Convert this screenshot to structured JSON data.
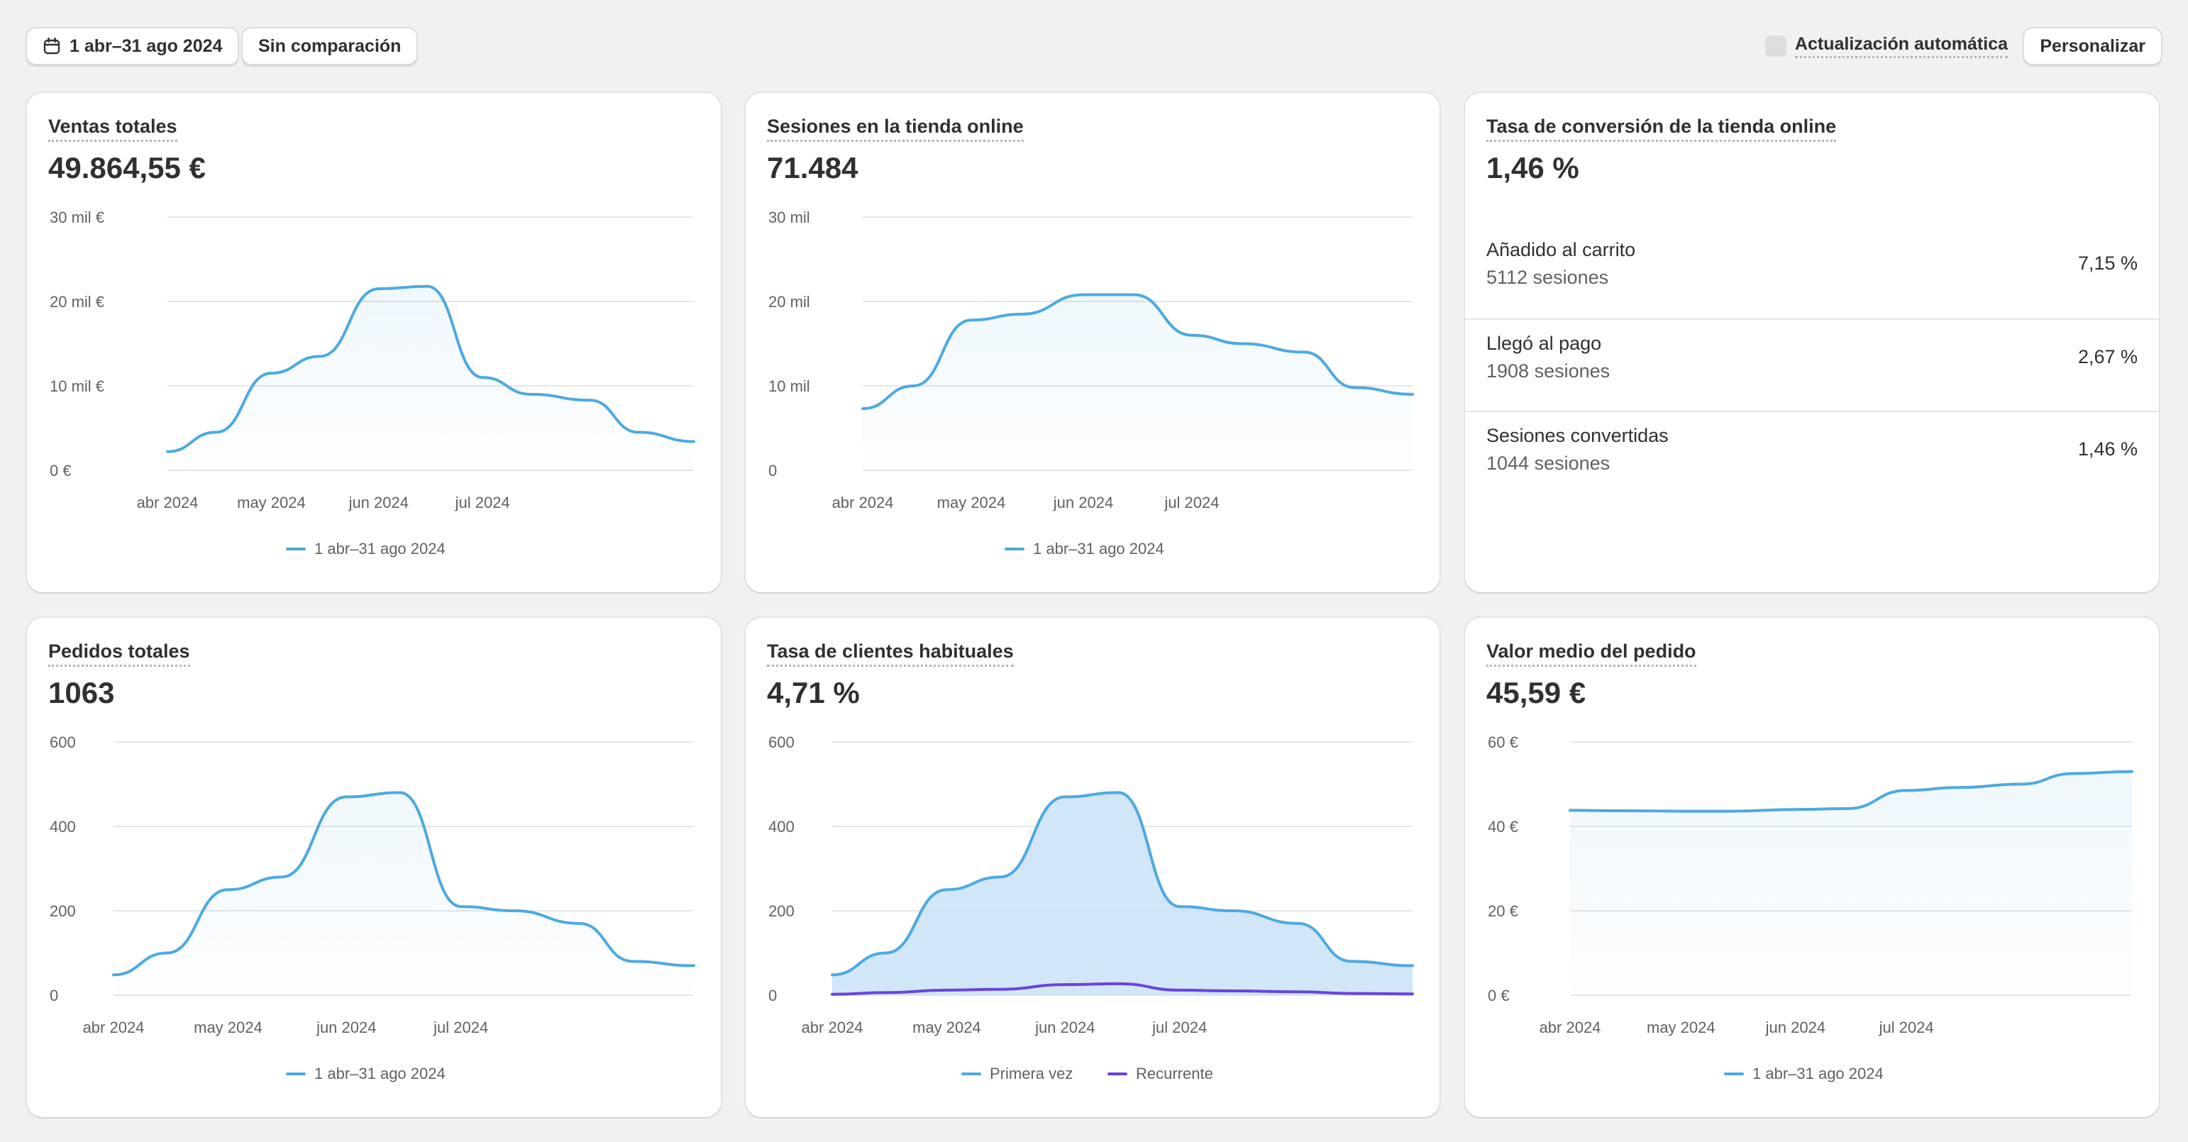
{
  "toolbar": {
    "date_range": "1 abr–31 ago 2024",
    "compare": "Sin comparación",
    "auto_refresh": "Actualización automática",
    "customize": "Personalizar"
  },
  "colors": {
    "primary": "#4ea9e0",
    "secondary": "#6a43dc",
    "area_fill": "#c9e2f4",
    "grid": "#e6e6e6",
    "page_bg": "#f1f1f1"
  },
  "cards": {
    "sales": {
      "title": "Ventas totales",
      "value": "49.864,55 €",
      "chart_data": {
        "type": "line",
        "x": [
          "2024-04-01",
          "2024-04-15",
          "2024-05-01",
          "2024-05-15",
          "2024-06-01",
          "2024-06-15",
          "2024-07-01",
          "2024-07-15",
          "2024-08-01",
          "2024-08-15",
          "2024-08-31"
        ],
        "series": [
          {
            "name": "1 abr–31 ago 2024",
            "values": [
              2200,
              4500,
              11500,
              13500,
              21500,
              21800,
              11000,
              9000,
              8300,
              4500,
              3400
            ]
          }
        ],
        "y_ticks": [
          "0 €",
          "10 mil €",
          "20 mil €",
          "30 mil €"
        ],
        "ylim": [
          0,
          30000
        ],
        "x_ticks": [
          "abr 2024",
          "may 2024",
          "jun 2024",
          "jul 2024"
        ],
        "legend": "bottom"
      }
    },
    "sessions": {
      "title": "Sesiones en la tienda online",
      "value": "71.484",
      "chart_data": {
        "type": "line",
        "x": [
          "2024-04-01",
          "2024-04-15",
          "2024-05-01",
          "2024-05-15",
          "2024-06-01",
          "2024-06-15",
          "2024-07-01",
          "2024-07-15",
          "2024-08-01",
          "2024-08-15",
          "2024-08-31"
        ],
        "series": [
          {
            "name": "1 abr–31 ago 2024",
            "values": [
              7300,
              10000,
              17800,
              18500,
              20800,
              20800,
              16000,
              15000,
              14000,
              9800,
              9000
            ]
          }
        ],
        "y_ticks": [
          "0",
          "10 mil",
          "20 mil",
          "30 mil"
        ],
        "ylim": [
          0,
          30000
        ],
        "x_ticks": [
          "abr 2024",
          "may 2024",
          "jun 2024",
          "jul 2024"
        ],
        "legend": "bottom"
      }
    },
    "conversion": {
      "title": "Tasa de conversión de la tienda online",
      "value": "1,46 %",
      "steps": [
        {
          "label": "Añadido al carrito",
          "sessions": "5112 sesiones",
          "rate": "7,15 %"
        },
        {
          "label": "Llegó al pago",
          "sessions": "1908 sesiones",
          "rate": "2,67 %"
        },
        {
          "label": "Sesiones convertidas",
          "sessions": "1044 sesiones",
          "rate": "1,46 %"
        }
      ]
    },
    "orders": {
      "title": "Pedidos totales",
      "value": "1063",
      "chart_data": {
        "type": "line",
        "x": [
          "2024-04-01",
          "2024-04-15",
          "2024-05-01",
          "2024-05-15",
          "2024-06-01",
          "2024-06-15",
          "2024-07-01",
          "2024-07-15",
          "2024-08-01",
          "2024-08-15",
          "2024-08-31"
        ],
        "series": [
          {
            "name": "1 abr–31 ago 2024",
            "values": [
              48,
              100,
              250,
              280,
              470,
              480,
              210,
              200,
              170,
              80,
              70
            ]
          }
        ],
        "y_ticks": [
          "0",
          "200",
          "400",
          "600"
        ],
        "ylim": [
          0,
          600
        ],
        "x_ticks": [
          "abr 2024",
          "may 2024",
          "jun 2024",
          "jul 2024"
        ],
        "legend": "bottom"
      }
    },
    "returning": {
      "title": "Tasa de clientes habituales",
      "value": "4,71 %",
      "chart_data": {
        "type": "area",
        "x": [
          "2024-04-01",
          "2024-04-15",
          "2024-05-01",
          "2024-05-15",
          "2024-06-01",
          "2024-06-15",
          "2024-07-01",
          "2024-07-15",
          "2024-08-01",
          "2024-08-15",
          "2024-08-31"
        ],
        "series": [
          {
            "name": "Primera vez",
            "values": [
              48,
              100,
              250,
              280,
              470,
              480,
              210,
              200,
              170,
              80,
              70
            ]
          },
          {
            "name": "Recurrente",
            "values": [
              2,
              6,
              12,
              14,
              25,
              27,
              12,
              10,
              8,
              4,
              3
            ]
          }
        ],
        "y_ticks": [
          "0",
          "200",
          "400",
          "600"
        ],
        "ylim": [
          0,
          600
        ],
        "x_ticks": [
          "abr 2024",
          "may 2024",
          "jun 2024",
          "jul 2024"
        ],
        "legend": "bottom"
      }
    },
    "aov": {
      "title": "Valor medio del pedido",
      "value": "45,59 €",
      "chart_data": {
        "type": "line",
        "x": [
          "2024-04-01",
          "2024-04-15",
          "2024-05-01",
          "2024-05-15",
          "2024-06-01",
          "2024-06-15",
          "2024-07-01",
          "2024-07-15",
          "2024-08-01",
          "2024-08-15",
          "2024-08-31"
        ],
        "series": [
          {
            "name": "1 abr–31 ago 2024",
            "values": [
              43.8,
              43.7,
              43.6,
              43.6,
              44.0,
              44.2,
              48.5,
              49.2,
              50.0,
              52.5,
              53.0
            ]
          }
        ],
        "y_ticks": [
          "0 €",
          "20 €",
          "40 €",
          "60 €"
        ],
        "ylim": [
          0,
          60
        ],
        "x_ticks": [
          "abr 2024",
          "may 2024",
          "jun 2024",
          "jul 2024"
        ],
        "legend": "bottom"
      }
    }
  }
}
